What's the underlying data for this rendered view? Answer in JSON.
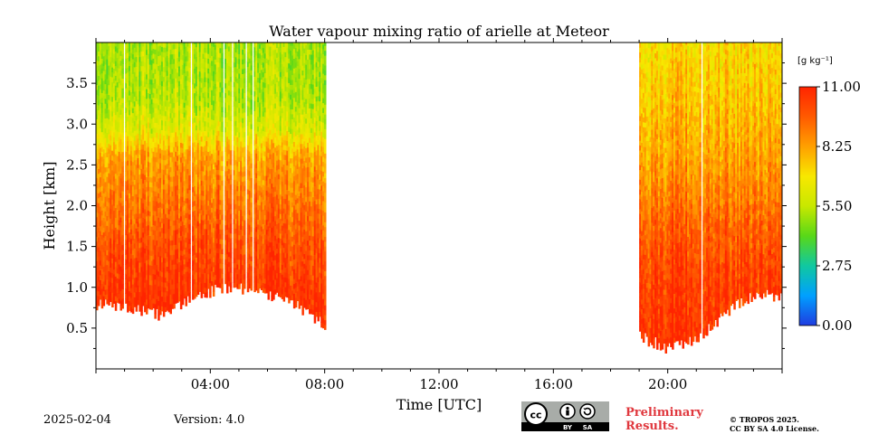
{
  "chart_data": {
    "type": "heatmap",
    "title": "Water vapour mixing ratio of arielle at Meteor",
    "xlabel": "Time [UTC]",
    "ylabel": "Height [km]",
    "xlim": [
      0,
      24
    ],
    "ylim": [
      0,
      4.0
    ],
    "x_ticks": [
      {
        "value": 4,
        "label": "04:00"
      },
      {
        "value": 8,
        "label": "08:00"
      },
      {
        "value": 12,
        "label": "12:00"
      },
      {
        "value": 16,
        "label": "16:00"
      },
      {
        "value": 20,
        "label": "20:00"
      }
    ],
    "y_ticks": [
      {
        "value": 0.5,
        "label": "0.5"
      },
      {
        "value": 1.0,
        "label": "1.0"
      },
      {
        "value": 1.5,
        "label": "1.5"
      },
      {
        "value": 2.0,
        "label": "2.0"
      },
      {
        "value": 2.5,
        "label": "2.5"
      },
      {
        "value": 3.0,
        "label": "3.0"
      },
      {
        "value": 3.5,
        "label": "3.5"
      }
    ],
    "colorbar": {
      "unit": "[g kg⁻¹]",
      "min": 0.0,
      "max": 11.0,
      "ticks": [
        {
          "value": 0.0,
          "label": "0.00"
        },
        {
          "value": 2.75,
          "label": "2.75"
        },
        {
          "value": 5.5,
          "label": "5.50"
        },
        {
          "value": 8.25,
          "label": "8.25"
        },
        {
          "value": 11.0,
          "label": "11.00"
        }
      ],
      "colors": [
        "#1f3ce0",
        "#00a0ff",
        "#10c8a0",
        "#58d818",
        "#c8e800",
        "#f8e800",
        "#ffa000",
        "#ff5a00",
        "#ff2400"
      ]
    },
    "regions": [
      {
        "t0": 0.0,
        "t1": 8.0,
        "h_bottom": [
          0.8,
          0.75,
          0.65,
          0.9,
          1.0,
          0.95,
          0.8,
          0.55
        ],
        "h_top": 4.0,
        "profile": [
          [
            0.8,
            10.8
          ],
          [
            1.5,
            10.0
          ],
          [
            2.0,
            9.2
          ],
          [
            2.6,
            8.2
          ],
          [
            2.9,
            6.2
          ],
          [
            3.3,
            5.3
          ],
          [
            4.0,
            5.2
          ]
        ]
      },
      {
        "t0": 19.0,
        "t1": 24.0,
        "h_bottom": [
          0.4,
          0.25,
          0.35,
          0.7,
          0.9,
          0.9
        ],
        "h_top": 4.0,
        "profile": [
          [
            0.3,
            10.8
          ],
          [
            1.2,
            10.2
          ],
          [
            1.8,
            9.4
          ],
          [
            2.3,
            8.6
          ],
          [
            3.0,
            7.8
          ],
          [
            4.0,
            7.0
          ]
        ]
      }
    ]
  },
  "footer": {
    "date": "2025-02-04",
    "version": "Version: 4.0",
    "preliminary_line1": "Preliminary",
    "preliminary_line2": "Results.",
    "copyright_line1": "© TROPOS 2025.",
    "copyright_line2": "CC BY SA 4.0 License."
  },
  "license_badge": {
    "cc": "cc",
    "by": "BY",
    "sa": "SA"
  }
}
